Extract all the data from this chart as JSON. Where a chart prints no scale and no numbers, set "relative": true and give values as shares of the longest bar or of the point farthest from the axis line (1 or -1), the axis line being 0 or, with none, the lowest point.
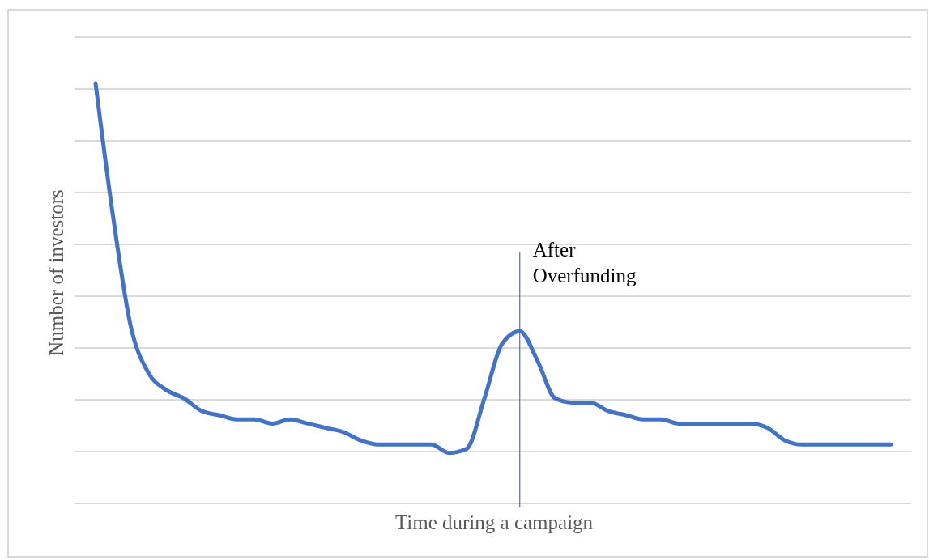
{
  "chart_data": {
    "type": "line",
    "relative": true,
    "xlabel": "Time during a campaign",
    "ylabel": "Number of investors",
    "grid": "y",
    "categories": [
      null,
      null,
      null,
      null,
      null,
      null,
      null,
      null,
      null,
      null,
      null,
      null,
      null,
      null,
      null,
      null,
      null,
      null,
      null,
      null,
      null,
      null,
      null,
      null,
      null,
      null,
      null,
      null,
      null,
      null,
      null,
      null,
      null,
      null,
      null,
      null,
      null,
      null,
      null,
      null,
      null,
      null,
      null,
      null,
      null,
      null
    ],
    "series": [
      {
        "color": "#4472c4",
        "values": [
          1.0,
          0.68,
          0.42,
          0.31,
          0.27,
          0.25,
          0.22,
          0.21,
          0.2,
          0.2,
          0.19,
          0.2,
          0.19,
          0.18,
          0.17,
          0.15,
          0.14,
          0.14,
          0.14,
          0.14,
          0.12,
          0.13,
          0.25,
          0.38,
          0.41,
          0.34,
          0.25,
          0.24,
          0.24,
          0.22,
          0.21,
          0.2,
          0.2,
          0.19,
          0.19,
          0.19,
          0.19,
          0.19,
          0.18,
          0.15,
          0.14,
          0.14,
          0.14,
          0.14,
          0.14,
          0.14
        ]
      }
    ],
    "annotations": [
      "After Overfunding"
    ],
    "marker": "none",
    "line_style": "solid"
  }
}
